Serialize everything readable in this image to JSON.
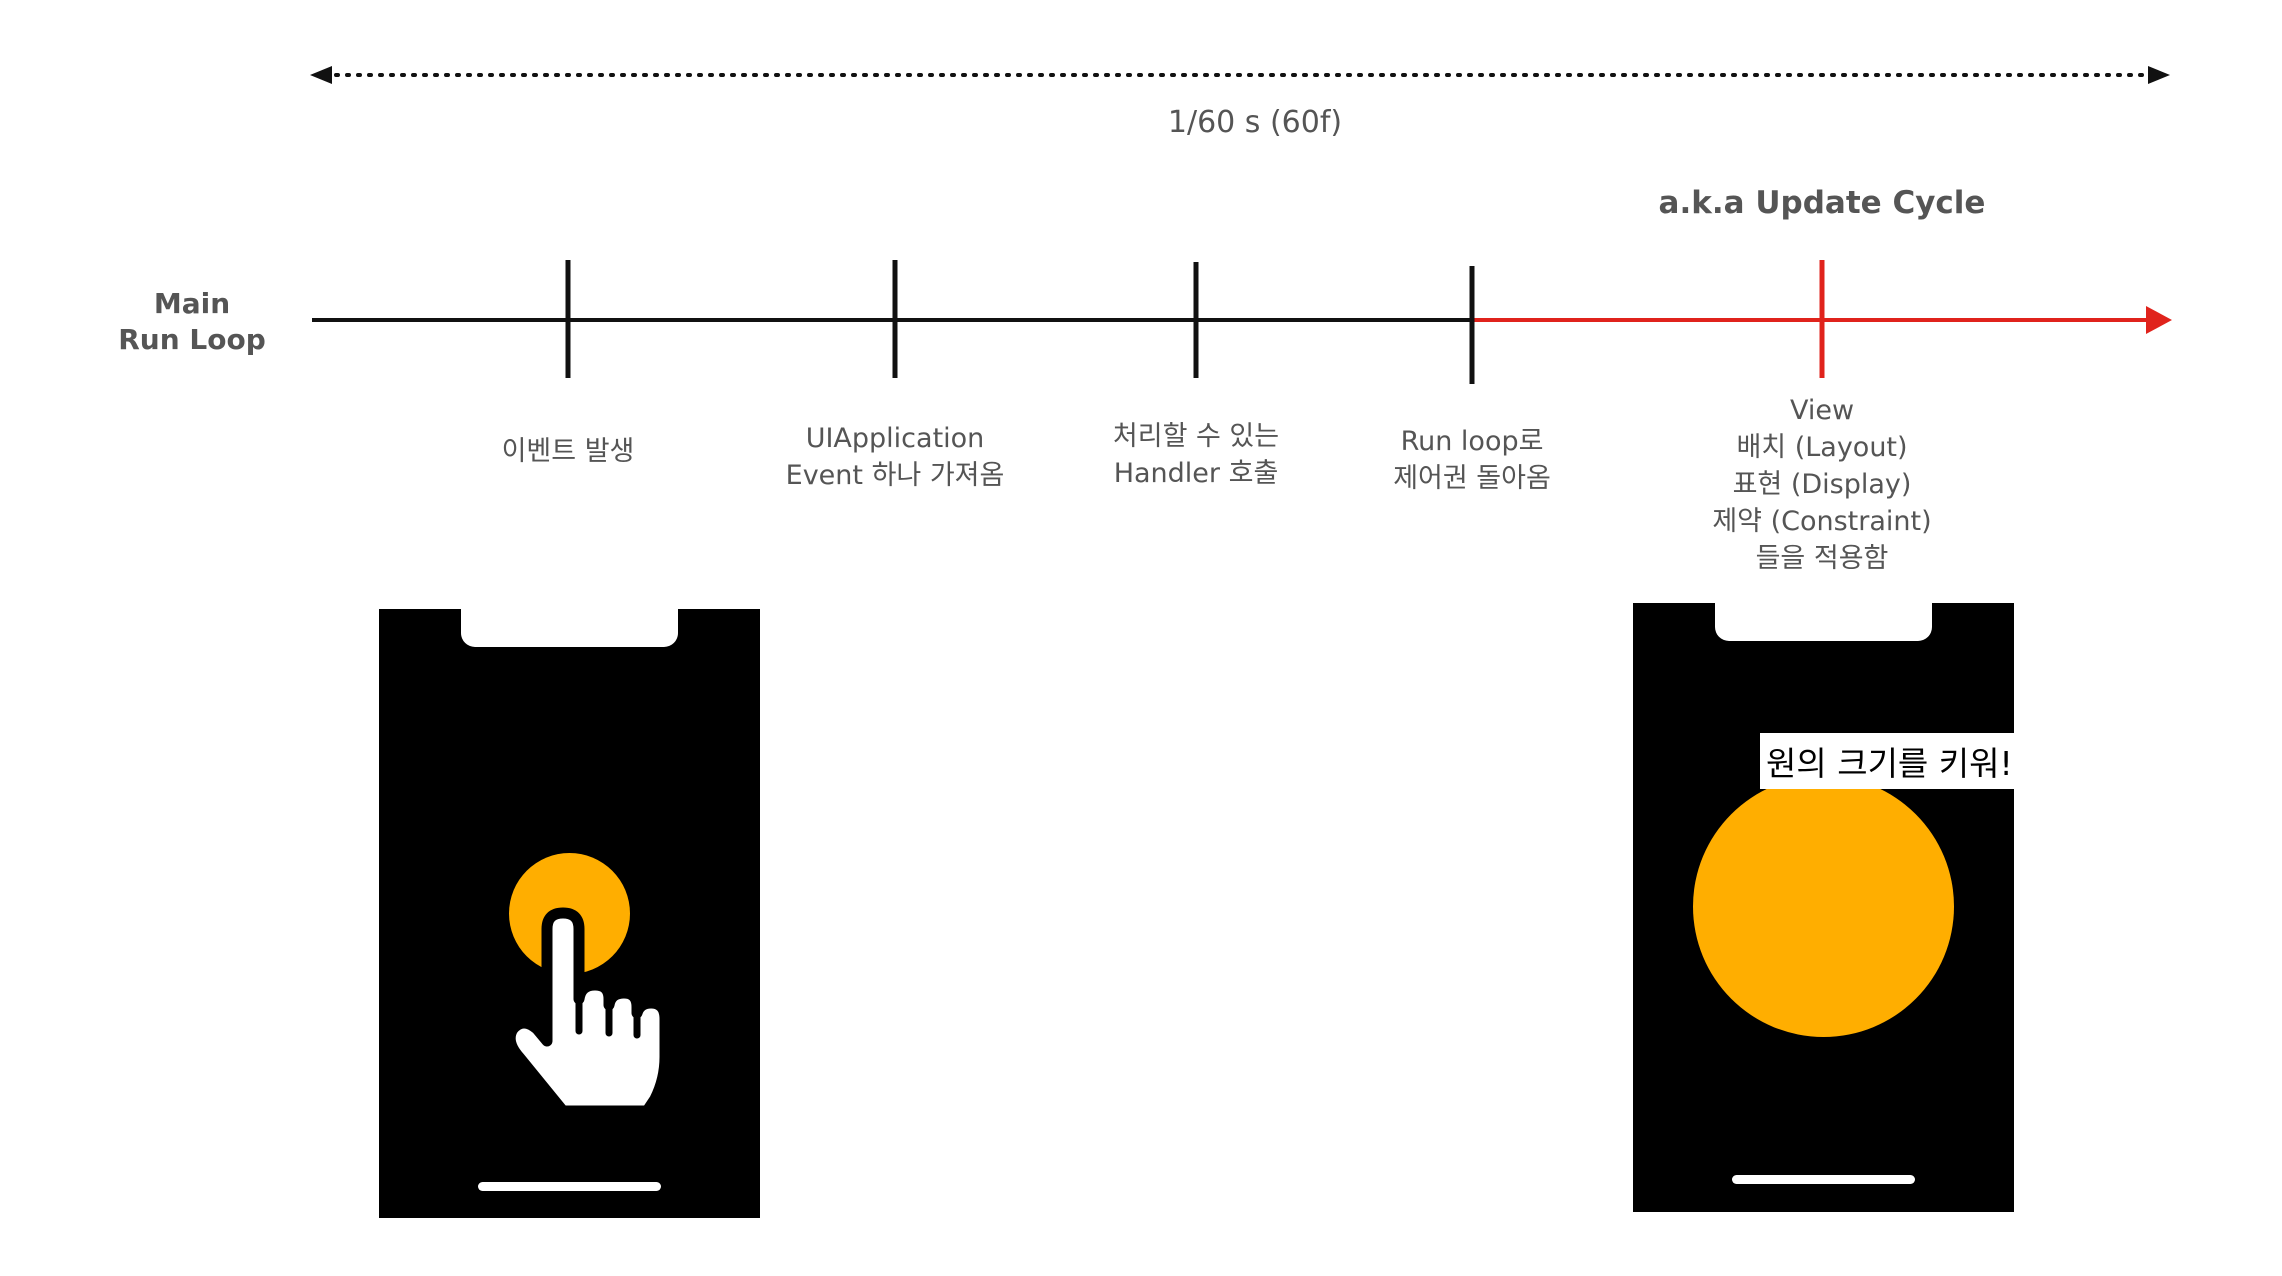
{
  "duration_label": "1/60 s (60f)",
  "cycle_label": "a.k.a Update Cycle",
  "main_loop_label": [
    "Main",
    "Run Loop"
  ],
  "steps": [
    {
      "lines": [
        "이벤트 발생"
      ]
    },
    {
      "lines": [
        "UIApplication",
        "Event 하나 가져옴"
      ]
    },
    {
      "lines": [
        "처리할 수 있는",
        "Handler 호출"
      ]
    },
    {
      "lines": [
        "Run loop로",
        "제어권 돌아옴"
      ]
    },
    {
      "lines": [
        "View",
        "배치 (Layout)",
        "표현 (Display)",
        "제약 (Constraint)",
        "들을 적용함"
      ]
    }
  ],
  "speech_bubble": "원의 크기를 키워!",
  "colors": {
    "timeline": "#111111",
    "update_cycle": "#e0231c",
    "circle": "#ffae00",
    "phone": "#000000"
  },
  "icons": [
    "pointing-hand-icon"
  ]
}
